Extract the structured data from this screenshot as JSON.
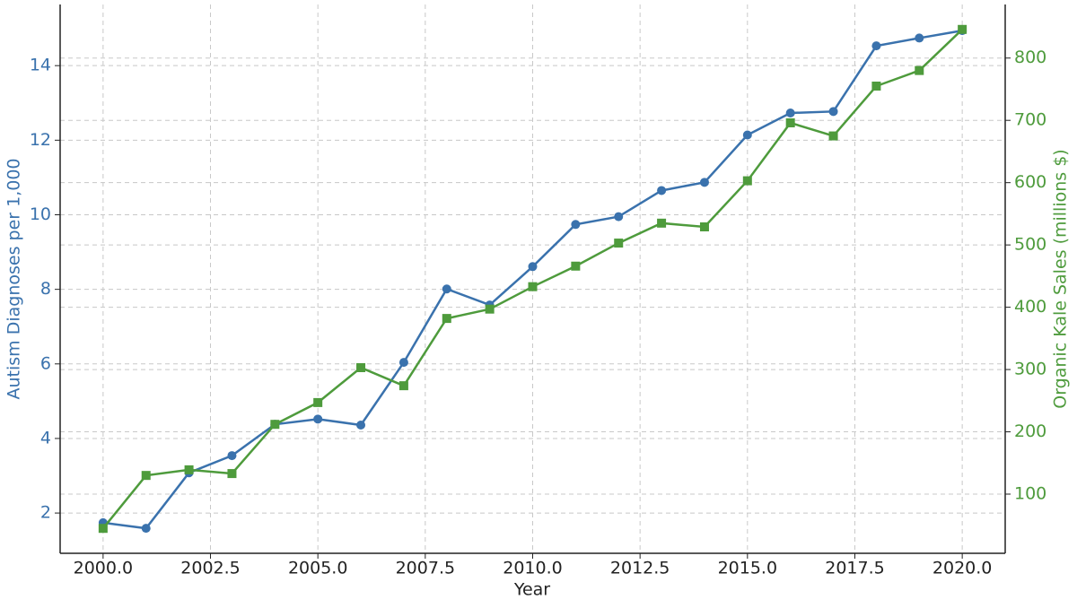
{
  "chart_data": {
    "type": "line",
    "x": [
      2000,
      2001,
      2002,
      2003,
      2004,
      2005,
      2006,
      2007,
      2008,
      2009,
      2010,
      2011,
      2012,
      2013,
      2014,
      2015,
      2016,
      2017,
      2018,
      2019,
      2020
    ],
    "x_label": "Year",
    "y_label": "Autism Diagnoses per 1,000",
    "y2_label": "Organic Kale Sales (millions $)",
    "xlim": [
      1999,
      2021
    ],
    "xticks": [
      {
        "value": 2000,
        "label": "2000.0"
      },
      {
        "value": 2002.5,
        "label": "2002.5"
      },
      {
        "value": 2005,
        "label": "2005.0"
      },
      {
        "value": 2007.5,
        "label": "2007.5"
      },
      {
        "value": 2010,
        "label": "2010.0"
      },
      {
        "value": 2012.5,
        "label": "2012.5"
      },
      {
        "value": 2015,
        "label": "2015.0"
      },
      {
        "value": 2017.5,
        "label": "2017.5"
      },
      {
        "value": 2020,
        "label": "2020.0"
      }
    ],
    "ylim": [
      0.92,
      15.64
    ],
    "yticks": [
      2,
      4,
      6,
      8,
      10,
      12,
      14
    ],
    "y2lim": [
      5,
      886
    ],
    "y2ticks": [
      100,
      200,
      300,
      400,
      500,
      600,
      700,
      800
    ],
    "grid": true,
    "series": [
      {
        "name": "Autism Diagnoses per 1,000",
        "color": "#3a72ad",
        "marker": "circle",
        "axis": "y",
        "values": [
          1.74,
          1.59,
          3.08,
          3.54,
          4.38,
          4.52,
          4.36,
          6.04,
          8.01,
          7.58,
          8.61,
          9.74,
          9.95,
          10.65,
          10.87,
          12.14,
          12.73,
          12.77,
          14.53,
          14.74,
          14.94
        ]
      },
      {
        "name": "Organic Kale Sales (millions $)",
        "color": "#4e9b3c",
        "marker": "square",
        "axis": "y2",
        "values": [
          45,
          130,
          139,
          133,
          212,
          247,
          303,
          274,
          382,
          397,
          433,
          466,
          503,
          535,
          529,
          603,
          696,
          675,
          755,
          780,
          846
        ]
      }
    ]
  }
}
